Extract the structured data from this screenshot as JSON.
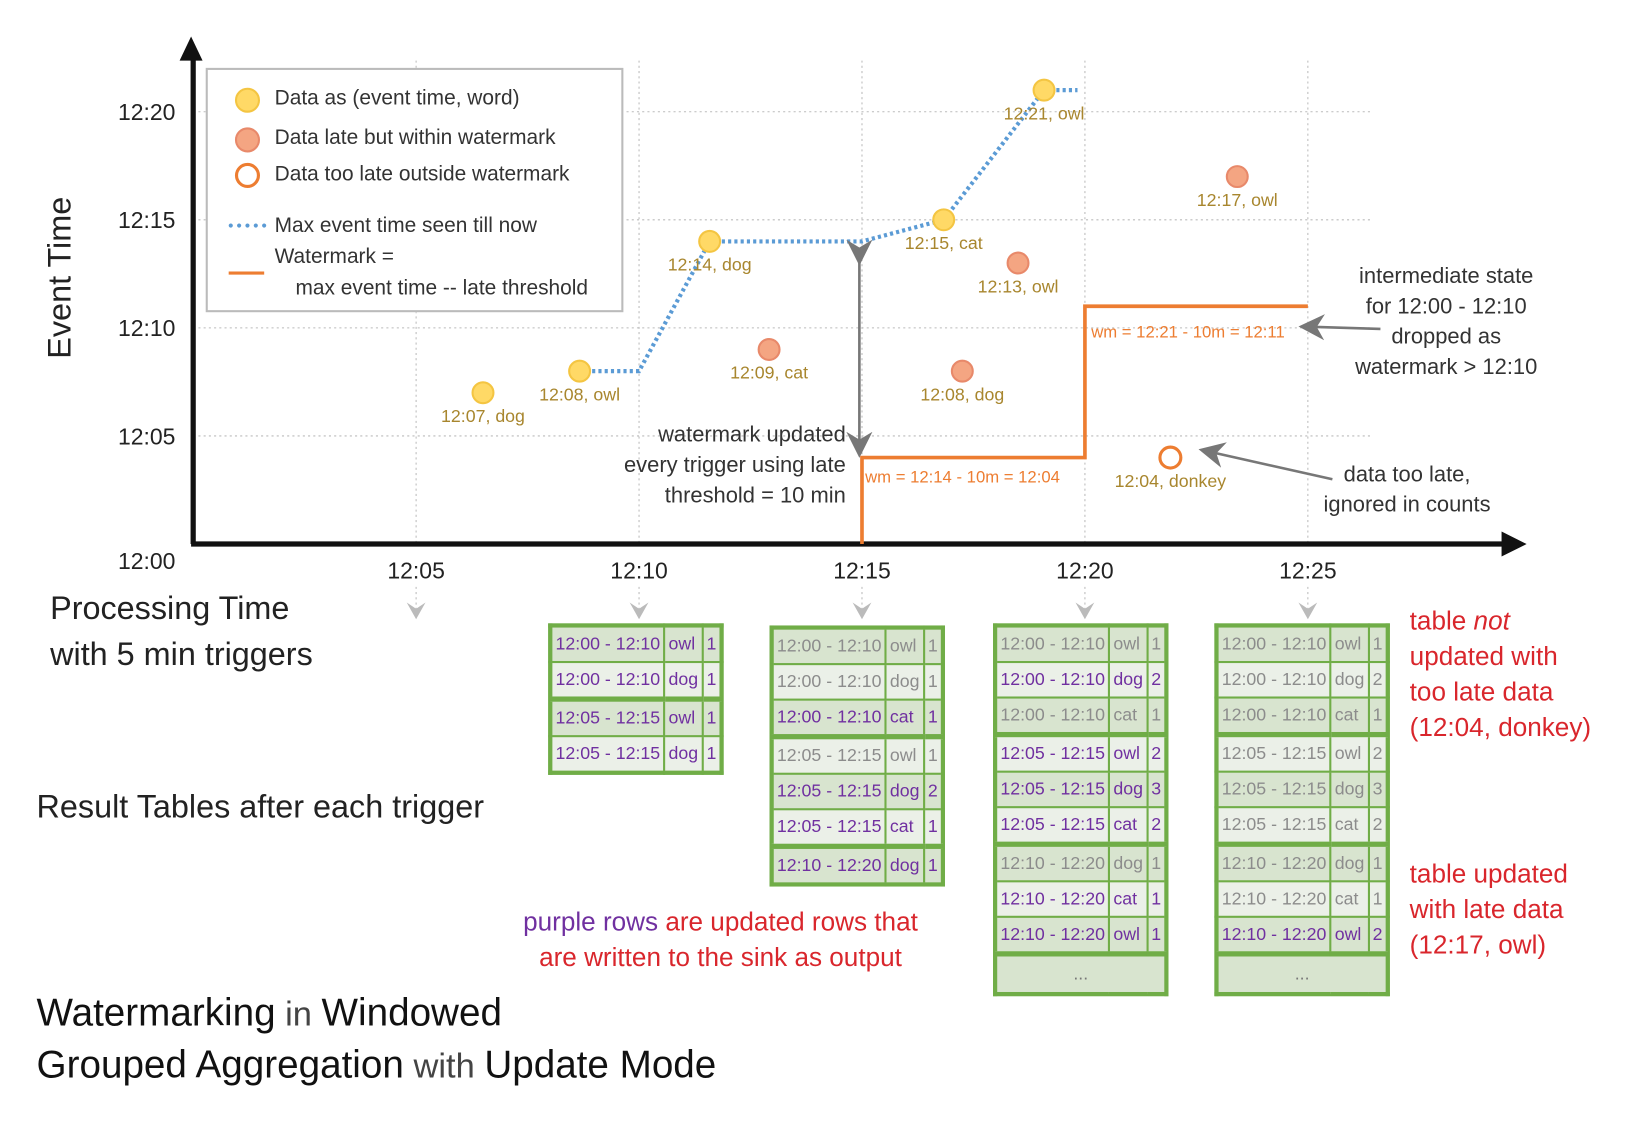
{
  "colors": {
    "accent_green": "#70ad47",
    "updated_purple": "#7030a0",
    "note_red": "#d9262c",
    "watermark_orange": "#ed7d31",
    "max_event_blue": "#5b9bd5",
    "on_time_point": "#ffd966",
    "late_point": "#f4a582"
  },
  "axes": {
    "y_label": "Event Time",
    "x_label_line1": "Processing Time",
    "x_label_line2": "with 5 min triggers",
    "y_ticks": [
      "12:00",
      "12:05",
      "12:10",
      "12:15",
      "12:20"
    ],
    "x_ticks": [
      "12:05",
      "12:10",
      "12:15",
      "12:20",
      "12:25"
    ]
  },
  "legend": {
    "on_time": "Data as (event time, word)",
    "late": "Data late but within watermark",
    "too_late": "Data too late outside watermark",
    "max_event": "Max event time seen till now",
    "watermark_line1": "Watermark =",
    "watermark_line2": "max event time -- late threshold"
  },
  "points": [
    {
      "label": "12:07, dog",
      "event": "12:07",
      "processing": "12:06:30",
      "kind": "on_time"
    },
    {
      "label": "12:08, owl",
      "event": "12:08",
      "processing": "12:08:40",
      "kind": "on_time"
    },
    {
      "label": "12:14, dog",
      "event": "12:14",
      "processing": "12:11:35",
      "kind": "on_time"
    },
    {
      "label": "12:09, cat",
      "event": "12:09",
      "processing": "12:12:55",
      "kind": "late"
    },
    {
      "label": "12:15, cat",
      "event": "12:15",
      "processing": "12:16:50",
      "kind": "on_time"
    },
    {
      "label": "12:08, dog",
      "event": "12:08",
      "processing": "12:17:15",
      "kind": "late"
    },
    {
      "label": "12:13, owl",
      "event": "12:13",
      "processing": "12:18:30",
      "kind": "late"
    },
    {
      "label": "12:21, owl",
      "event": "12:21",
      "processing": "12:19:05",
      "kind": "on_time"
    },
    {
      "label": "12:04, donkey",
      "event": "12:04",
      "processing": "12:21:55",
      "kind": "too_late"
    },
    {
      "label": "12:17, owl",
      "event": "12:17",
      "processing": "12:23:25",
      "kind": "late"
    }
  ],
  "max_event_line": [
    [
      "12:08:40",
      "12:08"
    ],
    [
      "12:10:00",
      "12:08"
    ],
    [
      "12:11:35",
      "12:14"
    ],
    [
      "12:15:00",
      "12:14"
    ],
    [
      "12:16:50",
      "12:15"
    ],
    [
      "12:19:05",
      "12:21"
    ],
    [
      "12:19:50",
      "12:21"
    ]
  ],
  "watermark_line": [
    [
      "12:15",
      "12:00"
    ],
    [
      "12:15",
      "12:04"
    ],
    [
      "12:20",
      "12:04"
    ],
    [
      "12:20",
      "12:11"
    ],
    [
      "12:25",
      "12:11"
    ]
  ],
  "watermark_labels": [
    "wm = 12:14 - 10m = 12:04",
    "wm = 12:21 - 10m = 12:11"
  ],
  "annotations": {
    "wm_updated": [
      "watermark updated",
      "every trigger using late",
      "threshold = 10 min"
    ],
    "intermediate": [
      "intermediate state",
      "for 12:00 - 12:10",
      "dropped as",
      "watermark > 12:10"
    ],
    "too_late": [
      "data too late,",
      "ignored in counts"
    ]
  },
  "result_tables_label": "Result Tables after each trigger",
  "tables": [
    {
      "trigger": "12:10",
      "rows": [
        {
          "window": "12:00 - 12:10",
          "word": "owl",
          "count": "1",
          "updated": true
        },
        {
          "window": "12:00 - 12:10",
          "word": "dog",
          "count": "1",
          "updated": true
        },
        {
          "window": "12:05 - 12:15",
          "word": "owl",
          "count": "1",
          "updated": true
        },
        {
          "window": "12:05 - 12:15",
          "word": "dog",
          "count": "1",
          "updated": true
        }
      ],
      "more": ""
    },
    {
      "trigger": "12:15",
      "rows": [
        {
          "window": "12:00 - 12:10",
          "word": "owl",
          "count": "1",
          "updated": false
        },
        {
          "window": "12:00 - 12:10",
          "word": "dog",
          "count": "1",
          "updated": false
        },
        {
          "window": "12:00 - 12:10",
          "word": "cat",
          "count": "1",
          "updated": true
        },
        {
          "window": "12:05 - 12:15",
          "word": "owl",
          "count": "1",
          "updated": false
        },
        {
          "window": "12:05 - 12:15",
          "word": "dog",
          "count": "2",
          "updated": true
        },
        {
          "window": "12:05 - 12:15",
          "word": "cat",
          "count": "1",
          "updated": true
        },
        {
          "window": "12:10 - 12:20",
          "word": "dog",
          "count": "1",
          "updated": true
        }
      ],
      "more": ""
    },
    {
      "trigger": "12:20",
      "rows": [
        {
          "window": "12:00 - 12:10",
          "word": "owl",
          "count": "1",
          "updated": false
        },
        {
          "window": "12:00 - 12:10",
          "word": "dog",
          "count": "2",
          "updated": true
        },
        {
          "window": "12:00 - 12:10",
          "word": "cat",
          "count": "1",
          "updated": false
        },
        {
          "window": "12:05 - 12:15",
          "word": "owl",
          "count": "2",
          "updated": true
        },
        {
          "window": "12:05 - 12:15",
          "word": "dog",
          "count": "3",
          "updated": true
        },
        {
          "window": "12:05 - 12:15",
          "word": "cat",
          "count": "2",
          "updated": true
        },
        {
          "window": "12:10 - 12:20",
          "word": "dog",
          "count": "1",
          "updated": false
        },
        {
          "window": "12:10 - 12:20",
          "word": "cat",
          "count": "1",
          "updated": true
        },
        {
          "window": "12:10 - 12:20",
          "word": "owl",
          "count": "1",
          "updated": true
        }
      ],
      "more": "..."
    },
    {
      "trigger": "12:25",
      "rows": [
        {
          "window": "12:00 - 12:10",
          "word": "owl",
          "count": "1",
          "updated": false
        },
        {
          "window": "12:00 - 12:10",
          "word": "dog",
          "count": "2",
          "updated": false
        },
        {
          "window": "12:00 - 12:10",
          "word": "cat",
          "count": "1",
          "updated": false
        },
        {
          "window": "12:05 - 12:15",
          "word": "owl",
          "count": "2",
          "updated": false
        },
        {
          "window": "12:05 - 12:15",
          "word": "dog",
          "count": "3",
          "updated": false
        },
        {
          "window": "12:05 - 12:15",
          "word": "cat",
          "count": "2",
          "updated": false
        },
        {
          "window": "12:10 - 12:20",
          "word": "dog",
          "count": "1",
          "updated": false
        },
        {
          "window": "12:10 - 12:20",
          "word": "cat",
          "count": "1",
          "updated": false
        },
        {
          "window": "12:10 - 12:20",
          "word": "owl",
          "count": "2",
          "updated": true
        }
      ],
      "more": "..."
    }
  ],
  "notes": {
    "not_updated": {
      "l1": "table ",
      "l1_em": "not",
      "l2": "updated with",
      "l3": "too late data",
      "l4": "(12:04, donkey)"
    },
    "updated": {
      "l1": "table updated",
      "l2": "with late data",
      "l3": "(12:17, owl)"
    },
    "purple_rows": {
      "purple": "purple rows",
      "rest1": " are updated rows that",
      "rest2": "are written to the sink as output"
    }
  },
  "title": {
    "w1": "Watermarking",
    "w2": " in ",
    "w3": "Windowed",
    "w4": "Grouped Aggregation",
    "w5": " with ",
    "w6": "Update Mode"
  }
}
